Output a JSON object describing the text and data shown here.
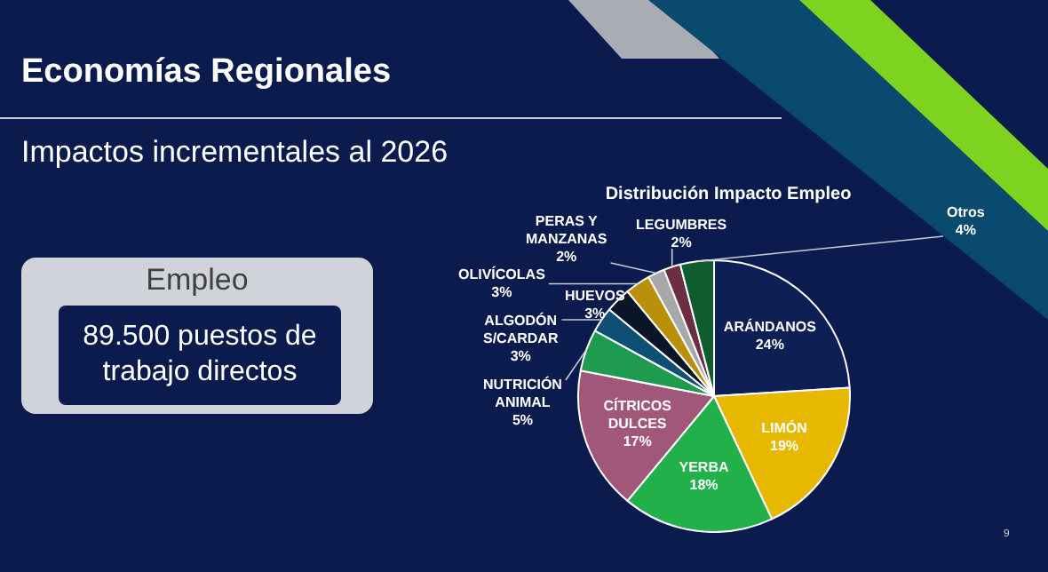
{
  "chart_data": {
    "type": "pie",
    "title": "Economías Regionales",
    "subtitle": "Impactos incrementales al 2026",
    "annotations": [
      "Distribución Impacto Empleo",
      "Empleo",
      "89.500 puestos de trabajo directos",
      "9"
    ],
    "categories": [
      "ARÁNDANOS",
      "LIMÓN",
      "YERBA",
      "CÍTRICOS DULCES",
      "NUTRICIÓN ANIMAL",
      "ALGODÓN S/CARDAR",
      "HUEVOS",
      "OLIVÍCOLAS",
      "PERAS Y MANZANAS",
      "LEGUMBRES",
      "Otros"
    ],
    "values": [
      24,
      19,
      18,
      17,
      5,
      3,
      3,
      3,
      2,
      2,
      4
    ],
    "value_labels": [
      "24%",
      "19%",
      "18%",
      "17%",
      "5%",
      "3%",
      "3%",
      "3%",
      "2%",
      "2%",
      "4%"
    ],
    "colors": [
      "#0e1f55",
      "#e6b800",
      "#22b04b",
      "#a0577a",
      "#1e9b4f",
      "#0f4f73",
      "#0a1628",
      "#b8900a",
      "#a8a8a8",
      "#6b2e45",
      "#0f5c2e"
    ],
    "legend": false
  }
}
